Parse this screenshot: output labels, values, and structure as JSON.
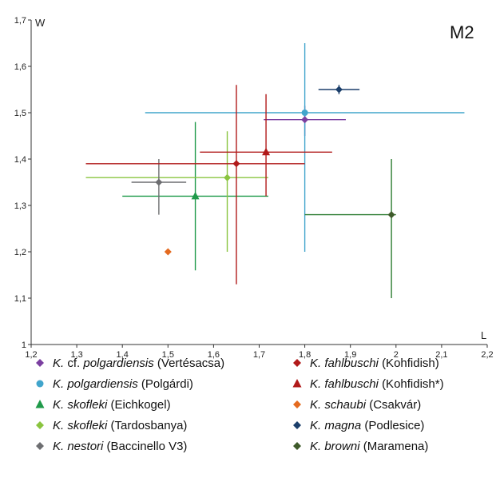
{
  "chart_data": {
    "type": "scatter",
    "panel_label": "M2",
    "xlabel": "L",
    "ylabel": "W",
    "xlim": [
      1.2,
      2.2
    ],
    "ylim": [
      1.0,
      1.7
    ],
    "x_ticks": [
      "1,2",
      "1,3",
      "1,4",
      "1,5",
      "1,6",
      "1,7",
      "1,8",
      "1,9",
      "2",
      "2,1",
      "2,2"
    ],
    "y_ticks": [
      "1",
      "1,1",
      "1,2",
      "1,3",
      "1,4",
      "1,5",
      "1,6",
      "1,7"
    ],
    "grid": false,
    "legend_position": "bottom",
    "series": [
      {
        "genus": "K.",
        "species_prefix": "cf.",
        "species": "polgardiensis",
        "locality": "(Vertésacsa)",
        "marker": "diamond",
        "color": "#7b3fa0",
        "x": 1.8,
        "y": 1.485,
        "x_range": [
          1.71,
          1.89
        ],
        "y_range": [
          1.45,
          1.515
        ]
      },
      {
        "genus": "K.",
        "species_prefix": "",
        "species": "polgardiensis",
        "locality": "(Polgárdi)",
        "marker": "circle",
        "color": "#41a5cc",
        "x": 1.8,
        "y": 1.5,
        "x_range": [
          1.45,
          2.15
        ],
        "y_range": [
          1.2,
          1.65
        ]
      },
      {
        "genus": "K.",
        "species_prefix": "",
        "species": "skofleki",
        "locality": "(Eichkogel)",
        "marker": "triangle",
        "color": "#1f9a4a",
        "x": 1.56,
        "y": 1.32,
        "x_range": [
          1.4,
          1.72
        ],
        "y_range": [
          1.16,
          1.48
        ]
      },
      {
        "genus": "K.",
        "species_prefix": "",
        "species": "skofleki",
        "locality": "(Tardosbanya)",
        "marker": "diamond",
        "color": "#8ac43f",
        "x": 1.63,
        "y": 1.36,
        "x_range": [
          1.32,
          1.72
        ],
        "y_range": [
          1.2,
          1.46
        ]
      },
      {
        "genus": "K.",
        "species_prefix": "",
        "species": "nestori",
        "locality": "(Baccinello V3)",
        "marker": "diamond",
        "color": "#6d6e71",
        "x": 1.48,
        "y": 1.35,
        "x_range": [
          1.42,
          1.54
        ],
        "y_range": [
          1.28,
          1.4
        ]
      },
      {
        "genus": "K.",
        "species_prefix": "",
        "species": "fahlbuschi",
        "locality": "(Kohfidish)",
        "marker": "diamond",
        "color": "#b11a1a",
        "x": 1.65,
        "y": 1.39,
        "x_range": [
          1.32,
          1.8
        ],
        "y_range": [
          1.13,
          1.56
        ]
      },
      {
        "genus": "K.",
        "species_prefix": "",
        "species": "fahlbuschi",
        "locality": "(Kohfidish*)",
        "marker": "triangle",
        "color": "#b11a1a",
        "x": 1.715,
        "y": 1.415,
        "x_range": [
          1.57,
          1.86
        ],
        "y_range": [
          1.32,
          1.54
        ]
      },
      {
        "genus": "K.",
        "species_prefix": "",
        "species": "schaubi",
        "locality": "(Csakvár)",
        "marker": "diamond",
        "color": "#e46a1f",
        "x": 1.5,
        "y": 1.2
      },
      {
        "genus": "K.",
        "species_prefix": "",
        "species": "magna",
        "locality": "(Podlesice)",
        "marker": "diamond",
        "color": "#1b3f6b",
        "x": 1.875,
        "y": 1.55,
        "x_range": [
          1.83,
          1.92
        ],
        "y_range": [
          1.54,
          1.56
        ]
      },
      {
        "genus": "K.",
        "species_prefix": "",
        "species": "browni",
        "locality": "(Maramena)",
        "marker": "diamond",
        "color": "#3e5a2a",
        "x": 1.99,
        "y": 1.28,
        "x_range": [
          1.8,
          2.0
        ],
        "y_range": [
          1.1,
          1.4
        ],
        "whisker_color": "#2e7d32"
      }
    ]
  }
}
